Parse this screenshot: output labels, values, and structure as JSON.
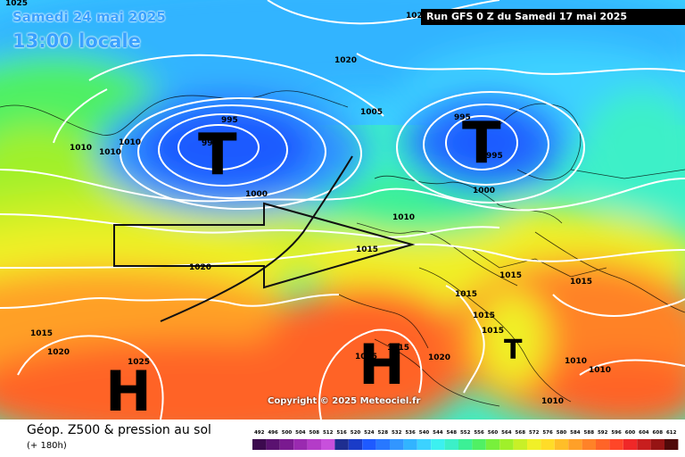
{
  "header": {
    "date_title": "Samedi 24 mai 2025",
    "time_title": "13:00 locale",
    "run_label": "Run GFS 0 Z du Samedi 17 mai 2025"
  },
  "copyright": "Copyright © 2025 Meteociel.fr",
  "footer": {
    "title": "Géop. Z500 & pression au sol",
    "subtitle": "(+ 180h)"
  },
  "legend": {
    "values": [
      492,
      496,
      500,
      504,
      508,
      512,
      516,
      520,
      524,
      528,
      532,
      536,
      540,
      544,
      548,
      552,
      556,
      560,
      564,
      568,
      572,
      576,
      580,
      584,
      588,
      592,
      596,
      600,
      604,
      608,
      612
    ],
    "colors": [
      "#3c0a4e",
      "#5a1270",
      "#7a1a90",
      "#9a2ab0",
      "#b43cc8",
      "#c850dc",
      "#1e2e90",
      "#1a3cc8",
      "#1e5aff",
      "#2878ff",
      "#3296ff",
      "#32b4ff",
      "#3cd2ff",
      "#3cf0f0",
      "#3cf0c8",
      "#3cf096",
      "#50f064",
      "#78f03c",
      "#a0f02a",
      "#c8f028",
      "#f0f028",
      "#ffdc28",
      "#ffbe28",
      "#ffa028",
      "#ff8228",
      "#ff6428",
      "#ff4628",
      "#f02828",
      "#c81e1e",
      "#961414",
      "#500a0a"
    ]
  },
  "systems": [
    {
      "type": "low",
      "letter": "T"
    },
    {
      "type": "low",
      "letter": "T"
    },
    {
      "type": "high",
      "letter": "H"
    },
    {
      "type": "high",
      "letter": "H"
    },
    {
      "type": "low",
      "letter": "T"
    }
  ],
  "isobar_labels": [
    "1025",
    "1020",
    "1005",
    "995",
    "990",
    "1010",
    "1010",
    "1010",
    "1000",
    "995",
    "995",
    "1000",
    "1010",
    "1015",
    "1020",
    "1015",
    "1015",
    "1015",
    "1015",
    "1015",
    "1015",
    "1020",
    "1015",
    "1020",
    "1025",
    "1010",
    "1010",
    "1010",
    "1025",
    "1020"
  ]
}
